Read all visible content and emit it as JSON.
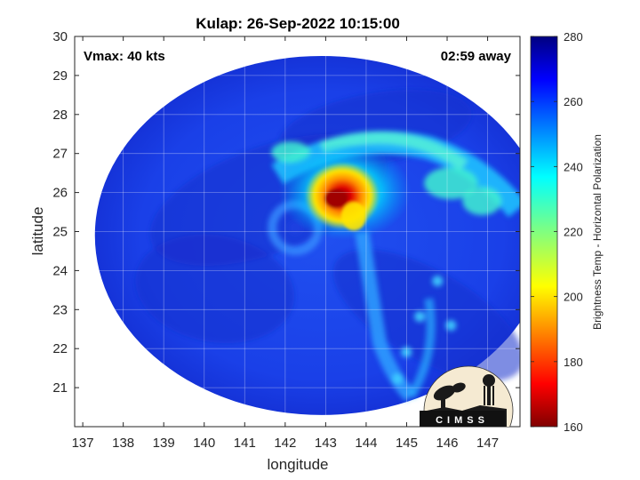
{
  "title": "Kulap: 26-Sep-2022 10:15:00",
  "vmax_label": "Vmax: 40 kts",
  "time_away_label": "02:59 away",
  "logo_text": "CIMSS",
  "map": {
    "xlabel": "longitude",
    "ylabel": "latitude",
    "xlim": [
      136.8,
      147.8
    ],
    "ylim": [
      20.0,
      30.0
    ],
    "xticks": [
      137,
      138,
      139,
      140,
      141,
      142,
      143,
      144,
      145,
      146,
      147
    ],
    "yticks": [
      21,
      22,
      23,
      24,
      25,
      26,
      27,
      28,
      29,
      30
    ],
    "grid": true,
    "swath_center": [
      142.9,
      24.9
    ],
    "swath_radius": [
      5.6,
      4.6
    ],
    "storm_center": [
      142.25,
      25.1
    ],
    "cold_core": [
      143.3,
      25.8
    ]
  },
  "colorbar": {
    "label": "Brightness Temp - Horizontal Polarization",
    "min": 160,
    "max": 280,
    "ticks": [
      160,
      180,
      200,
      220,
      240,
      260,
      280
    ],
    "colormap": "jet"
  }
}
